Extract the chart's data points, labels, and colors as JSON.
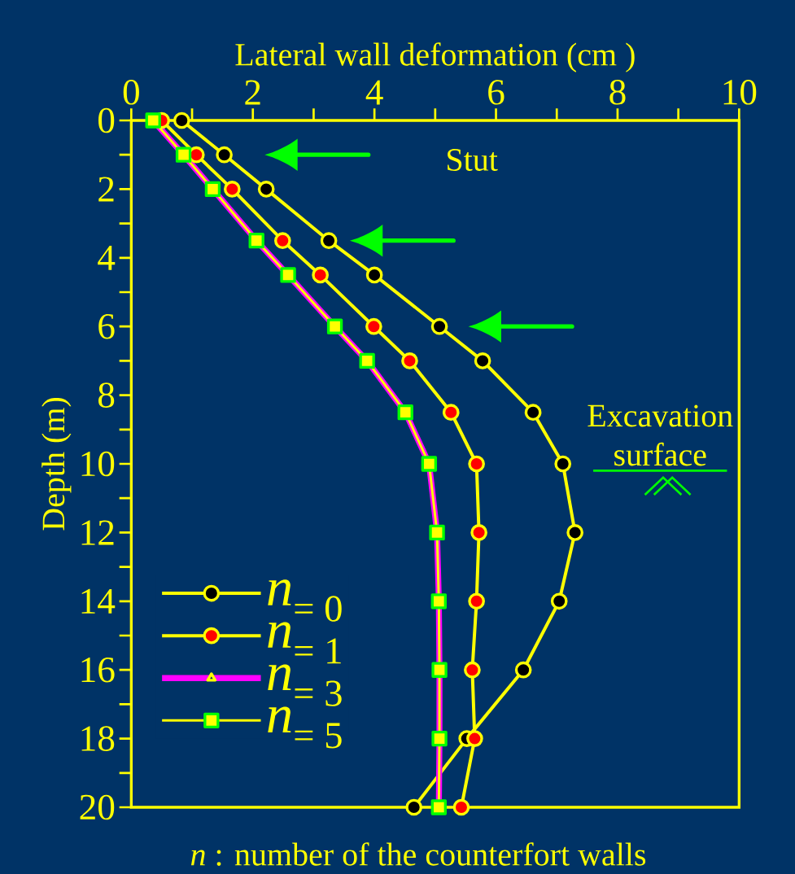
{
  "chart_data": {
    "type": "line",
    "xlabel": "Lateral wall deformation (cm )",
    "ylabel": "Depth (m)",
    "xlim": [
      0,
      10
    ],
    "ylim": [
      20,
      0
    ],
    "xticks": [
      0,
      {
        "value": 1,
        "label": null
      },
      2,
      {
        "value": 3,
        "label": null
      },
      4,
      {
        "value": 5,
        "label": null
      },
      6,
      {
        "value": 7,
        "label": null
      },
      8,
      {
        "value": 9,
        "label": null
      },
      10
    ],
    "yticks": [
      0,
      {
        "value": 1,
        "label": null
      },
      2,
      {
        "value": 3,
        "label": null
      },
      4,
      {
        "value": 5,
        "label": null
      },
      6,
      {
        "value": 7,
        "label": null
      },
      8,
      {
        "value": 9,
        "label": null
      },
      10,
      {
        "value": 11,
        "label": null
      },
      12,
      {
        "value": 13,
        "label": null
      },
      14,
      {
        "value": 15,
        "label": null
      },
      16,
      {
        "value": 17,
        "label": null
      },
      18,
      {
        "value": 19,
        "label": null
      },
      20
    ],
    "legend": "bottom left",
    "line_style": "solid",
    "series": [
      {
        "name": "*n*$_{= 0}$",
        "color": "#ffff00",
        "marker": "circle",
        "x": [
          0.83,
          1.53,
          2.22,
          3.25,
          4.0,
          5.07,
          5.78,
          6.61,
          7.1,
          7.3,
          7.04,
          6.45,
          5.52,
          4.65
        ],
        "values": [
          0,
          1,
          2,
          3.5,
          4.5,
          6,
          7,
          8.5,
          10,
          12,
          14,
          16,
          18,
          20
        ]
      },
      {
        "name": "*n*$_{= 1}$",
        "color": "#ffff00",
        "marker": "circle",
        "x": [
          0.5,
          1.07,
          1.66,
          2.49,
          3.11,
          3.99,
          4.58,
          5.26,
          5.68,
          5.72,
          5.68,
          5.61,
          5.65,
          5.43
        ],
        "values": [
          0,
          1,
          2,
          3.5,
          4.5,
          6,
          7,
          8.5,
          10,
          12,
          14,
          16,
          18,
          20
        ]
      },
      {
        "name": "*n*$_{= 3}$",
        "color": "#ff00ff",
        "marker": "triangle",
        "x": [
          0.36,
          0.86,
          1.34,
          2.06,
          2.58,
          3.35,
          3.88,
          4.51,
          4.9,
          5.03,
          5.06,
          5.07,
          5.07,
          5.06
        ],
        "values": [
          0,
          1,
          2,
          3.5,
          4.5,
          6,
          7,
          8.5,
          10,
          12,
          14,
          16,
          18,
          20
        ]
      },
      {
        "name": "*n*$_{= 5}$",
        "color": "#ffff00",
        "marker": "square",
        "x": [
          0.36,
          0.86,
          1.34,
          2.06,
          2.58,
          3.35,
          3.88,
          4.51,
          4.9,
          5.03,
          5.06,
          5.07,
          5.07,
          5.06
        ],
        "values": [
          0,
          1,
          2,
          3.5,
          4.5,
          6,
          7,
          8.5,
          10,
          12,
          14,
          16,
          18,
          20
        ]
      }
    ],
    "ref_lines": [
      {
        "axis": "y",
        "value": 10.2,
        "label": "Excavation surface",
        "color": "#00ff00"
      }
    ],
    "annotations": [
      "Stut",
      "*n* : number of the counterfort walls"
    ]
  }
}
